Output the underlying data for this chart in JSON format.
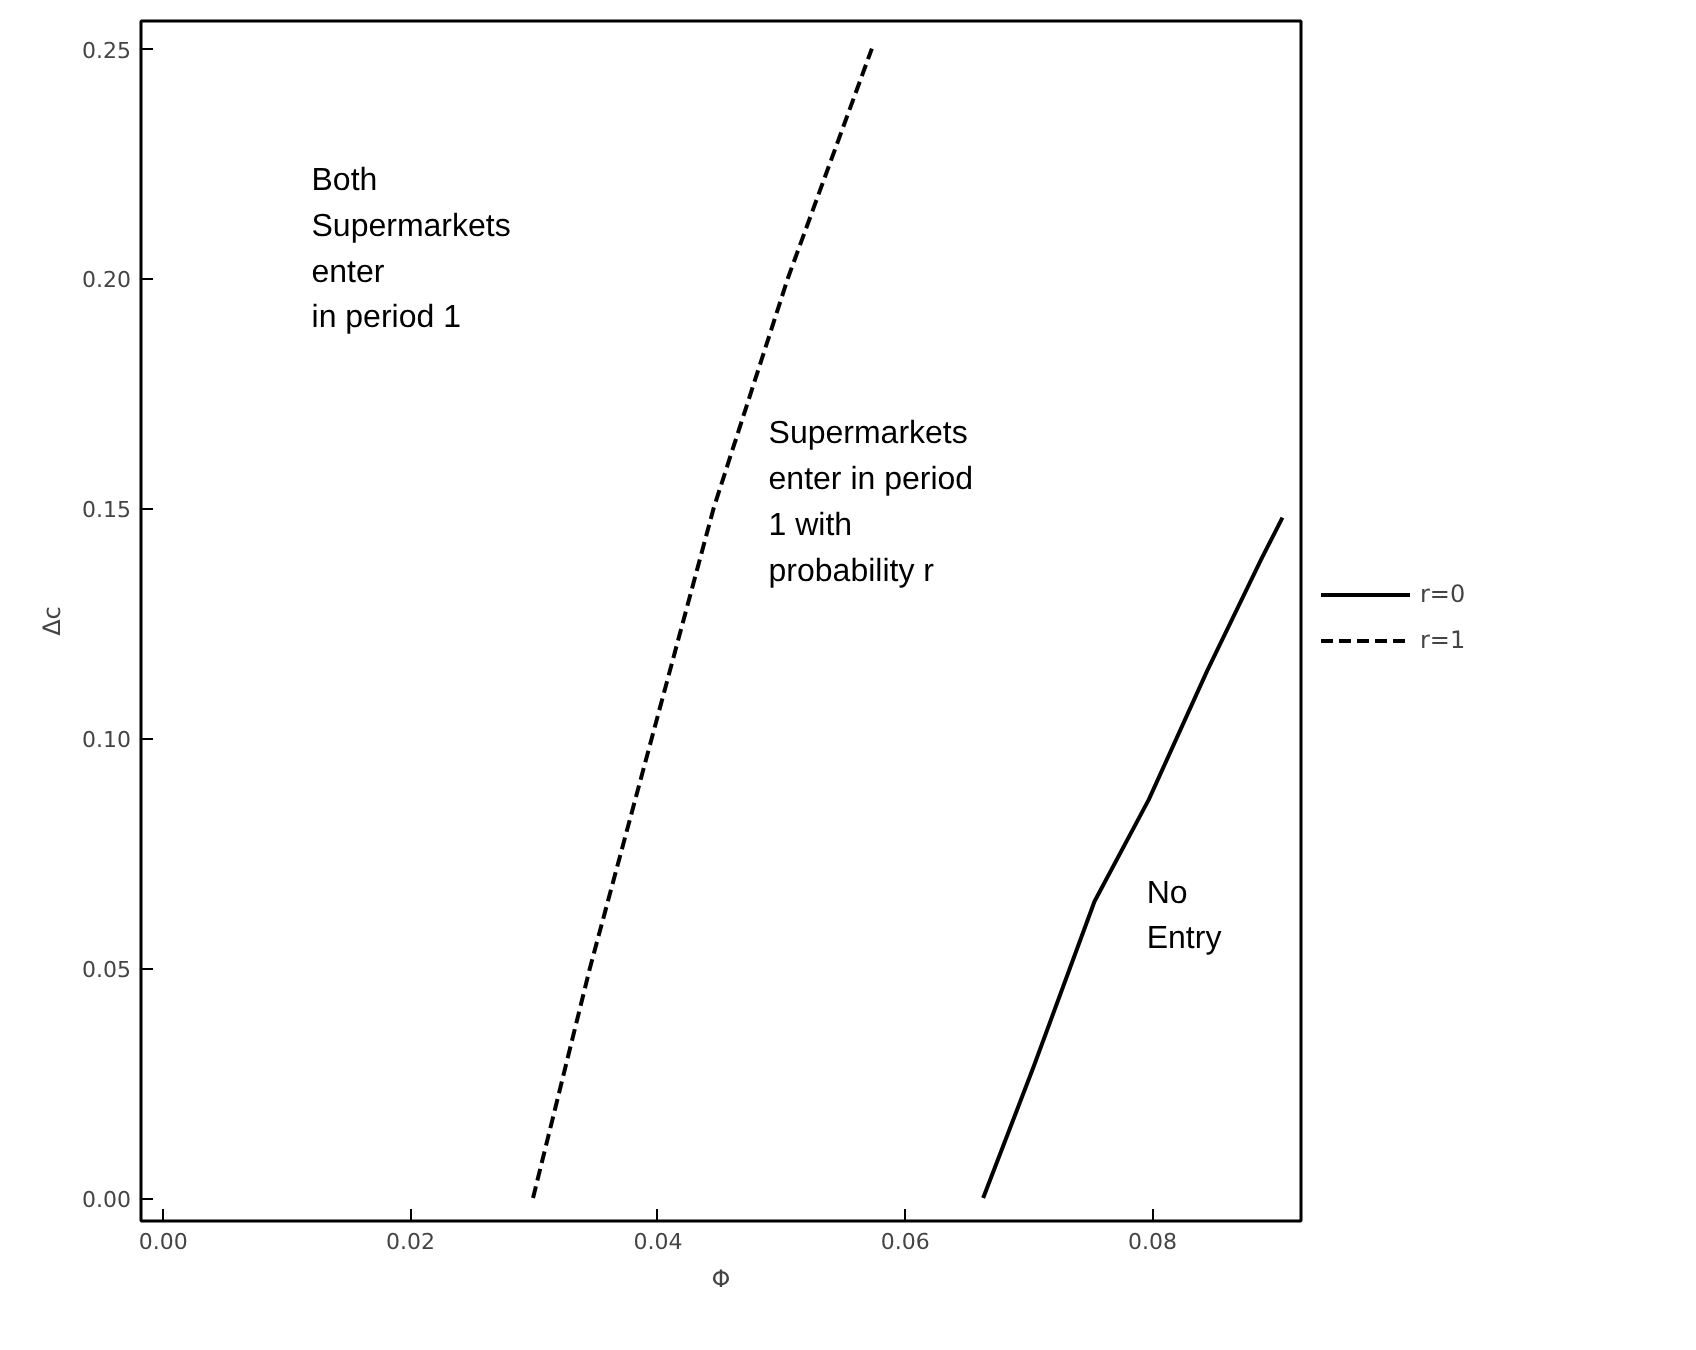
{
  "chart_data": {
    "type": "line",
    "xlabel": "Φ",
    "ylabel": "Δc",
    "xlim": [
      -0.0018,
      0.092
    ],
    "ylim": [
      -0.005,
      0.256
    ],
    "xticks": [
      {
        "value": 0,
        "label": "0.00"
      },
      {
        "value": 0.02,
        "label": "0.02"
      },
      {
        "value": 0.04,
        "label": "0.04"
      },
      {
        "value": 0.06,
        "label": "0.06"
      },
      {
        "value": 0.08,
        "label": "0.08"
      }
    ],
    "yticks": [
      {
        "value": 0,
        "label": "0.00"
      },
      {
        "value": 0.05,
        "label": "0.05"
      },
      {
        "value": 0.1,
        "label": "0.10"
      },
      {
        "value": 0.15,
        "label": "0.15"
      },
      {
        "value": 0.2,
        "label": "0.20"
      },
      {
        "value": 0.25,
        "label": "0.25"
      }
    ],
    "grid": false,
    "legend": "right",
    "series": [
      {
        "name": "r=0",
        "color": "#000000",
        "line_style": "solid",
        "x": [
          0.0663,
          0.0704,
          0.0753,
          0.0797,
          0.0844,
          0.0888,
          0.0905
        ],
        "values": [
          0,
          0.0287,
          0.0645,
          0.0867,
          0.1146,
          0.139,
          0.148
        ]
      },
      {
        "name": "r=1",
        "color": "#000000",
        "line_style": "dashed",
        "x": [
          0.0299,
          0.0345,
          0.0395,
          0.0445,
          0.0505,
          0.0573
        ],
        "values": [
          0,
          0.05,
          0.1,
          0.15,
          0.2,
          0.25
        ]
      }
    ],
    "annotations": [
      "Both\nSupermarkets\nenter\nin period 1",
      "Supermarkets\nenter in period\n1 with\nprobability r",
      "No\nEntry"
    ]
  }
}
